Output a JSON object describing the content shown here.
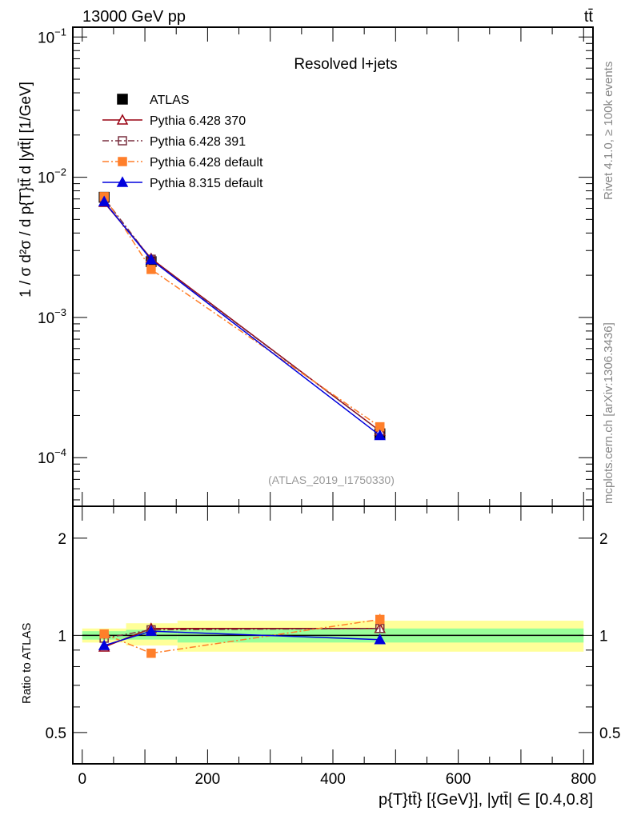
{
  "header": {
    "left": "13000 GeV pp",
    "right": "tt̄"
  },
  "side_labels": {
    "rivet": "Rivet 4.1.0, ≥ 100k events",
    "mcplots": "mcplots.cern.ch [arXiv:1306.3436]"
  },
  "chart_data": [
    {
      "type": "line",
      "title": "Resolved l+jets",
      "analysis_tag": "(ATLAS_2019_I1750330)",
      "ylabel": "1 / σ d²σ / d p{T}tt̄ d |ytt̄| [1/GeV]",
      "yscale": "log",
      "xlim": [
        -15,
        815
      ],
      "ylim": [
        4.5e-05,
        0.1175
      ],
      "yticks": [
        {
          "base": "10",
          "exp": "−1",
          "value": 0.1
        },
        {
          "base": "10",
          "exp": "−2",
          "value": 0.01
        },
        {
          "base": "10",
          "exp": "−3",
          "value": 0.001
        },
        {
          "base": "10",
          "exp": "−4",
          "value": 0.0001
        }
      ],
      "legend_position": "top-left",
      "x": [
        35,
        110,
        475
      ],
      "bins": [
        [
          0,
          70
        ],
        [
          70,
          152
        ],
        [
          152,
          800
        ]
      ],
      "series": [
        {
          "name": "ATLAS",
          "color": "#000000",
          "marker": "filled-square",
          "line": "none",
          "values": [
            0.0072,
            0.0025,
            0.000148
          ]
        },
        {
          "name": "Pythia 6.428 370",
          "color": "#990011",
          "marker": "open-triangle",
          "line": "solid",
          "values": [
            0.00662,
            0.00263,
            0.000155
          ]
        },
        {
          "name": "Pythia 6.428 391",
          "color": "#7a3040",
          "marker": "open-square",
          "line": "dashdot",
          "values": [
            0.00706,
            0.0026,
            0.000155
          ]
        },
        {
          "name": "Pythia 6.428 default",
          "color": "#ff7f2a",
          "marker": "filled-square",
          "line": "dashdot",
          "values": [
            0.00727,
            0.0022,
            0.000166
          ]
        },
        {
          "name": "Pythia 8.315 default",
          "color": "#0000dd",
          "marker": "filled-triangle",
          "line": "solid",
          "values": [
            0.0067,
            0.00258,
            0.000144
          ]
        }
      ]
    },
    {
      "type": "line",
      "ylabel": "Ratio to ATLAS",
      "xlabel": "p{T}tt̄} [{GeV}], |ytt̄| ∈ [0.4,0.8]",
      "yscale": "log",
      "xlim": [
        -15,
        815
      ],
      "ylim": [
        0.4,
        2.51
      ],
      "yticks": [
        "0.5",
        "1",
        "2"
      ],
      "xticks": [
        "0",
        "200",
        "400",
        "600",
        "800"
      ],
      "band_colors": {
        "total": "#ffff99",
        "stat": "#99ff99"
      },
      "bands": {
        "total": [
          [
            0.95,
            1.05
          ],
          [
            0.93,
            1.09
          ],
          [
            0.89,
            1.11
          ]
        ],
        "stat": [
          [
            0.97,
            1.03
          ],
          [
            0.97,
            1.04
          ],
          [
            0.95,
            1.05
          ]
        ]
      },
      "x": [
        35,
        110,
        475
      ],
      "series": [
        {
          "name": "Pythia 6.428 370",
          "values": [
            0.92,
            1.05,
            1.05
          ],
          "err": [
            0.01,
            0.02,
            0.03
          ]
        },
        {
          "name": "Pythia 6.428 391",
          "values": [
            0.98,
            1.04,
            1.05
          ],
          "err": [
            0.01,
            0.02,
            0.03
          ]
        },
        {
          "name": "Pythia 6.428 default",
          "values": [
            1.01,
            0.88,
            1.12
          ],
          "err": [
            0.01,
            0.02,
            0.04
          ]
        },
        {
          "name": "Pythia 8.315 default",
          "values": [
            0.93,
            1.03,
            0.97
          ],
          "err": [
            0.01,
            0.02,
            0.03
          ]
        }
      ]
    }
  ]
}
